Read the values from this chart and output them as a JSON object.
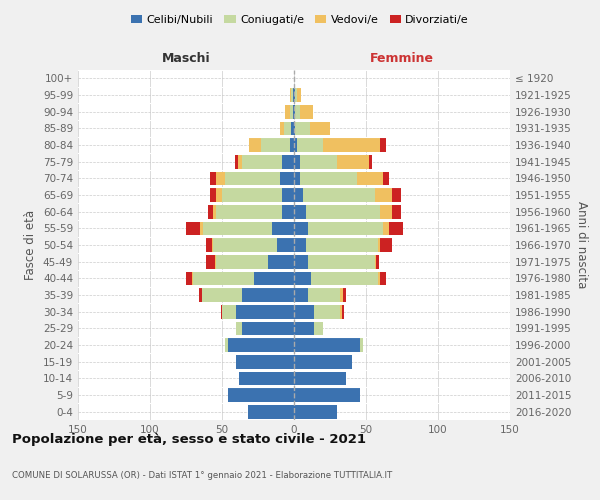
{
  "age_groups": [
    "0-4",
    "5-9",
    "10-14",
    "15-19",
    "20-24",
    "25-29",
    "30-34",
    "35-39",
    "40-44",
    "45-49",
    "50-54",
    "55-59",
    "60-64",
    "65-69",
    "70-74",
    "75-79",
    "80-84",
    "85-89",
    "90-94",
    "95-99",
    "100+"
  ],
  "birth_years": [
    "2016-2020",
    "2011-2015",
    "2006-2010",
    "2001-2005",
    "1996-2000",
    "1991-1995",
    "1986-1990",
    "1981-1985",
    "1976-1980",
    "1971-1975",
    "1966-1970",
    "1961-1965",
    "1956-1960",
    "1951-1955",
    "1946-1950",
    "1941-1945",
    "1936-1940",
    "1931-1935",
    "1926-1930",
    "1921-1925",
    "≤ 1920"
  ],
  "colors": {
    "celibe": "#3b72b0",
    "coniugato": "#c5d9a0",
    "vedovo": "#f0c060",
    "divorziato": "#cc2222"
  },
  "males": {
    "celibe": [
      32,
      46,
      38,
      40,
      46,
      36,
      40,
      36,
      28,
      18,
      12,
      15,
      8,
      8,
      10,
      8,
      3,
      2,
      1,
      1,
      0
    ],
    "coniugato": [
      0,
      0,
      0,
      0,
      2,
      4,
      10,
      28,
      42,
      36,
      44,
      48,
      46,
      42,
      38,
      28,
      20,
      5,
      2,
      1,
      0
    ],
    "vedovo": [
      0,
      0,
      0,
      0,
      0,
      0,
      0,
      0,
      1,
      1,
      1,
      2,
      2,
      4,
      6,
      3,
      8,
      3,
      3,
      1,
      0
    ],
    "divorziato": [
      0,
      0,
      0,
      0,
      0,
      0,
      1,
      2,
      4,
      6,
      4,
      10,
      4,
      4,
      4,
      2,
      0,
      0,
      0,
      0,
      0
    ]
  },
  "females": {
    "nubile": [
      30,
      46,
      36,
      40,
      46,
      14,
      14,
      10,
      12,
      10,
      8,
      10,
      8,
      6,
      4,
      4,
      2,
      1,
      1,
      1,
      0
    ],
    "coniugata": [
      0,
      0,
      0,
      0,
      2,
      6,
      18,
      22,
      46,
      46,
      50,
      52,
      52,
      50,
      40,
      26,
      18,
      10,
      3,
      1,
      0
    ],
    "vedova": [
      0,
      0,
      0,
      0,
      0,
      0,
      1,
      2,
      2,
      1,
      2,
      4,
      8,
      12,
      18,
      22,
      40,
      14,
      9,
      3,
      0
    ],
    "divorziata": [
      0,
      0,
      0,
      0,
      0,
      0,
      2,
      2,
      4,
      2,
      8,
      10,
      6,
      6,
      4,
      2,
      4,
      0,
      0,
      0,
      0
    ]
  },
  "title": "Popolazione per età, sesso e stato civile - 2021",
  "subtitle": "COMUNE DI SOLARUSSA (OR) - Dati ISTAT 1° gennaio 2021 - Elaborazione TUTTITALIA.IT",
  "label_maschi": "Maschi",
  "label_femmine": "Femmine",
  "ylabel_left": "Fasce di età",
  "ylabel_right": "Anni di nascita",
  "xlim": 150,
  "legend_labels": [
    "Celibi/Nubili",
    "Coniugati/e",
    "Vedovi/e",
    "Divorziati/e"
  ],
  "bg_color": "#f0f0f0",
  "plot_bg_color": "#ffffff",
  "grid_color": "#cccccc",
  "dashed_line_color": "#aaaaaa"
}
